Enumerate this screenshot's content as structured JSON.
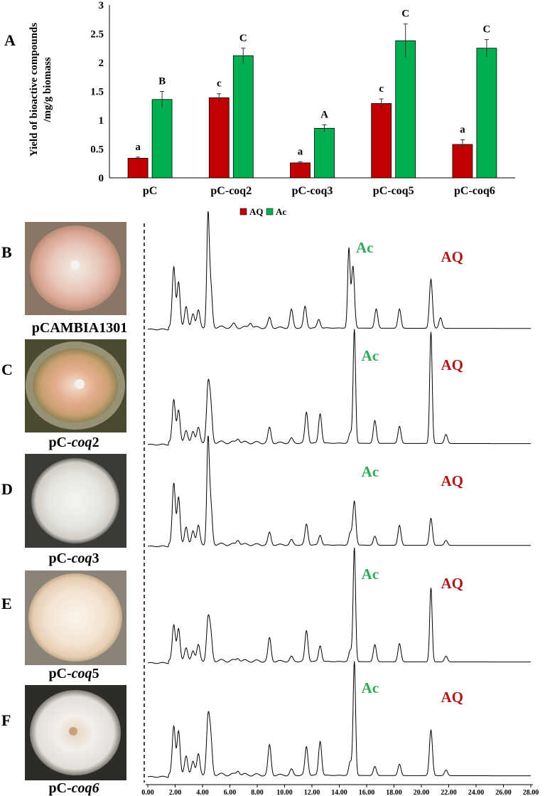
{
  "panel_letters": {
    "a": "A",
    "b": "B",
    "c": "C",
    "d": "D",
    "e": "E",
    "f": "F"
  },
  "chart_data": [
    {
      "type": "bar",
      "panel": "A",
      "ylabel_line1": "Yield of bioactive compounds",
      "ylabel_line2": "/mg/g biomass",
      "ylim": [
        0,
        3
      ],
      "yticks": [
        "0",
        "0.5",
        "1",
        "1.5",
        "2",
        "2.5",
        "3"
      ],
      "categories": [
        "pC",
        "pC-coq2",
        "pC-coq3",
        "pC-coq5",
        "pC-coq6"
      ],
      "series": [
        {
          "name": "AQ",
          "color": "#c00000",
          "values": [
            0.34,
            1.39,
            0.26,
            1.29,
            0.58
          ],
          "errors": [
            0.02,
            0.07,
            0.02,
            0.08,
            0.08
          ],
          "letters": [
            "a",
            "c",
            "a",
            "c",
            "a"
          ]
        },
        {
          "name": "Ac",
          "color": "#00b050",
          "values": [
            1.36,
            2.12,
            0.86,
            2.38,
            2.25
          ],
          "errors": [
            0.14,
            0.13,
            0.06,
            0.29,
            0.15
          ],
          "letters": [
            "B",
            "C",
            "A",
            "C",
            "C"
          ]
        }
      ],
      "legend_position": "bottom-center"
    },
    {
      "type": "line",
      "description_role": "HPLC chromatograms",
      "x_ticks": [
        "0.00",
        "2.00",
        "4.00",
        "6.00",
        "8.00",
        "10.00",
        "12.00",
        "14.00",
        "16.00",
        "18.00",
        "20.00",
        "22.00",
        "24.00",
        "26.00",
        "28.00"
      ],
      "xlim": [
        0,
        28
      ],
      "traces": [
        {
          "panel": "B",
          "strain": "pCAMBIA1301",
          "ac_label": "Ac",
          "aq_label": "AQ",
          "peaks": [
            [
              1.9,
              0.55
            ],
            [
              2.25,
              0.42
            ],
            [
              2.8,
              0.18
            ],
            [
              3.3,
              0.13
            ],
            [
              3.7,
              0.15
            ],
            [
              4.4,
              1.0
            ],
            [
              4.6,
              0.38
            ],
            [
              6.3,
              0.03
            ],
            [
              7.5,
              0.05
            ],
            [
              8.9,
              0.09
            ],
            [
              10.5,
              0.17
            ],
            [
              11.5,
              0.2
            ],
            [
              12.5,
              0.08
            ],
            [
              14.7,
              0.74
            ],
            [
              15.0,
              0.58
            ],
            [
              16.7,
              0.18
            ],
            [
              18.4,
              0.18
            ],
            [
              20.7,
              0.46
            ],
            [
              21.4,
              0.1
            ]
          ]
        },
        {
          "panel": "C",
          "strain": "pC-coq2",
          "ac_label": "Ac",
          "aq_label": "AQ",
          "peaks": [
            [
              1.9,
              0.36
            ],
            [
              2.25,
              0.28
            ],
            [
              2.8,
              0.09
            ],
            [
              3.3,
              0.1
            ],
            [
              3.7,
              0.12
            ],
            [
              4.4,
              0.47
            ],
            [
              4.6,
              0.3
            ],
            [
              6.6,
              0.04
            ],
            [
              8.9,
              0.13
            ],
            [
              10.5,
              0.04
            ],
            [
              11.6,
              0.27
            ],
            [
              12.6,
              0.26
            ],
            [
              14.8,
              0.09
            ],
            [
              15.1,
              1.0
            ],
            [
              16.6,
              0.2
            ],
            [
              18.4,
              0.15
            ],
            [
              20.7,
              0.98
            ],
            [
              21.8,
              0.08
            ]
          ]
        },
        {
          "panel": "D",
          "strain": "pC-coq3",
          "ac_label": "Ac",
          "aq_label": "AQ",
          "peaks": [
            [
              1.9,
              0.6
            ],
            [
              2.25,
              0.47
            ],
            [
              2.8,
              0.16
            ],
            [
              3.3,
              0.14
            ],
            [
              3.7,
              0.18
            ],
            [
              4.4,
              1.0
            ],
            [
              4.6,
              0.4
            ],
            [
              6.6,
              0.05
            ],
            [
              8.9,
              0.12
            ],
            [
              10.5,
              0.05
            ],
            [
              11.6,
              0.21
            ],
            [
              12.6,
              0.1
            ],
            [
              14.8,
              0.12
            ],
            [
              15.1,
              0.44
            ],
            [
              16.6,
              0.09
            ],
            [
              18.4,
              0.2
            ],
            [
              20.7,
              0.27
            ],
            [
              21.8,
              0.05
            ]
          ]
        },
        {
          "panel": "E",
          "strain": "pC-coq5",
          "ac_label": "Ac",
          "aq_label": "AQ",
          "peaks": [
            [
              1.9,
              0.3
            ],
            [
              2.25,
              0.28
            ],
            [
              2.8,
              0.1
            ],
            [
              3.3,
              0.09
            ],
            [
              3.7,
              0.13
            ],
            [
              4.4,
              0.34
            ],
            [
              4.6,
              0.22
            ],
            [
              6.6,
              0.03
            ],
            [
              8.9,
              0.2
            ],
            [
              10.5,
              0.04
            ],
            [
              11.6,
              0.27
            ],
            [
              12.6,
              0.14
            ],
            [
              14.8,
              0.1
            ],
            [
              15.1,
              1.0
            ],
            [
              16.6,
              0.15
            ],
            [
              18.4,
              0.16
            ],
            [
              20.7,
              0.65
            ],
            [
              21.8,
              0.05
            ]
          ]
        },
        {
          "panel": "F",
          "strain": "pC-coq6",
          "ac_label": "Ac",
          "aq_label": "AQ",
          "peaks": [
            [
              1.9,
              0.41
            ],
            [
              2.25,
              0.38
            ],
            [
              2.8,
              0.15
            ],
            [
              3.3,
              0.12
            ],
            [
              3.7,
              0.17
            ],
            [
              4.4,
              0.47
            ],
            [
              4.6,
              0.3
            ],
            [
              6.6,
              0.04
            ],
            [
              8.9,
              0.26
            ],
            [
              10.5,
              0.05
            ],
            [
              11.6,
              0.25
            ],
            [
              12.6,
              0.3
            ],
            [
              14.8,
              0.12
            ],
            [
              15.1,
              1.0
            ],
            [
              16.6,
              0.08
            ],
            [
              18.4,
              0.1
            ],
            [
              20.7,
              0.4
            ],
            [
              21.8,
              0.05
            ]
          ]
        }
      ]
    }
  ]
}
